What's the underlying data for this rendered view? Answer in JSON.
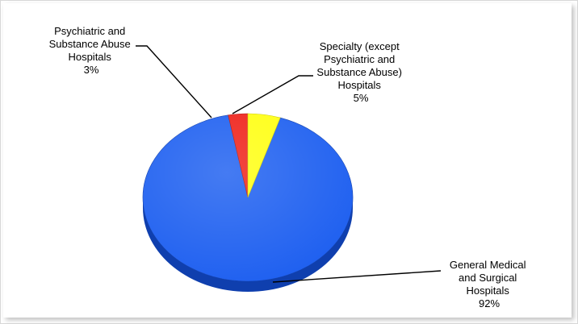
{
  "chart_data": {
    "type": "pie",
    "slices": [
      {
        "label_lines": [
          "General Medical",
          "and Surgical",
          "Hospitals"
        ],
        "percent_label": "92%",
        "value": 92,
        "color": "#1c5ef0",
        "side_color": "#0f3fae"
      },
      {
        "label_lines": [
          "Psychiatric and",
          "Substance Abuse",
          "Hospitals"
        ],
        "percent_label": "3%",
        "value": 3,
        "color": "#ef1f17",
        "side_color": "#a80f0a"
      },
      {
        "label_lines": [
          "Specialty (except",
          "Psychiatric and",
          "Substance Abuse)",
          "Hospitals"
        ],
        "percent_label": "5%",
        "value": 5,
        "color": "#ffff10",
        "side_color": "#c8c800"
      }
    ],
    "legend": "none",
    "style": "3d-tilted"
  }
}
